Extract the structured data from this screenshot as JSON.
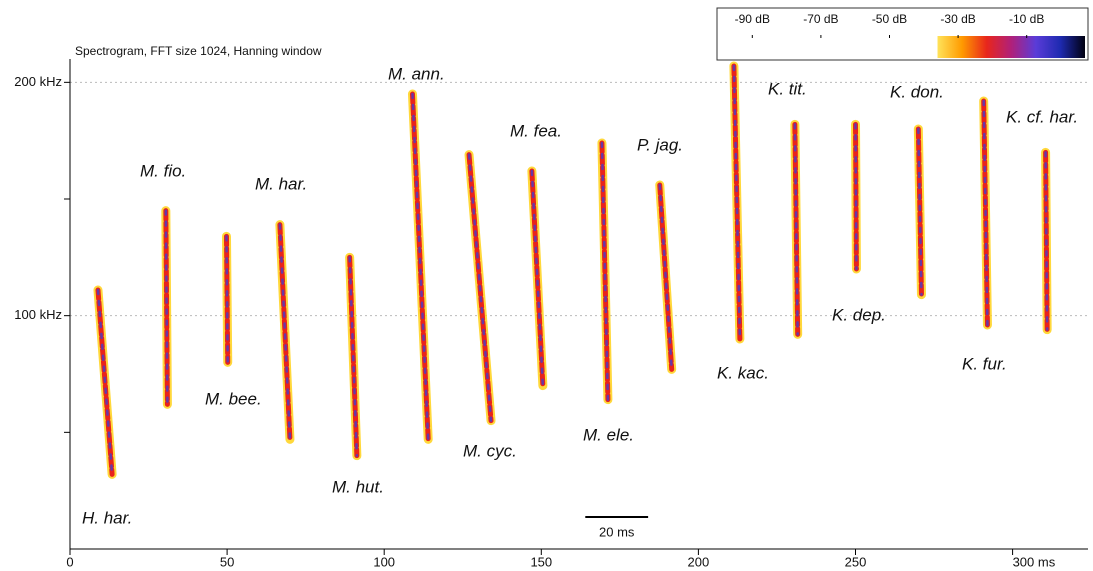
{
  "chart_data": {
    "type": "spectrogram",
    "title": "Spectrogram, FFT size 1024, Hanning window",
    "xlim": [
      0,
      324
    ],
    "ylim": [
      0,
      210
    ],
    "xticks": [
      0,
      50,
      100,
      150,
      200,
      250,
      {
        "value": 300,
        "label": "300 ms"
      }
    ],
    "yticks": [
      {
        "value": 100,
        "label": "100 kHz"
      },
      {
        "value": 200,
        "label": "200 kHz"
      }
    ],
    "yminor": [
      50,
      150
    ],
    "grid": true,
    "scale_bar": {
      "label": "20 ms",
      "start": 164,
      "length": 20
    },
    "colorbar": {
      "lim": [
        -100,
        7
      ],
      "gradient_from": -36,
      "colors": [
        "#ffe35a",
        "#ff9a00",
        "#e8261c",
        "#b0207a",
        "#5a3cd8",
        "#1e2ab0",
        "#000010"
      ],
      "ticks": [
        {
          "value": -90,
          "label": "-90 dB"
        },
        {
          "value": -70,
          "label": "-70 dB"
        },
        {
          "value": -50,
          "label": "-50 dB"
        },
        {
          "value": -30,
          "label": "-30 dB"
        },
        {
          "value": -10,
          "label": "-10 dB"
        }
      ]
    },
    "calls": [
      {
        "name": "H. har.",
        "t": [
          8.9,
          13.4
        ],
        "f": [
          111,
          32
        ]
      },
      {
        "name": "M. fio.",
        "t": [
          30.5,
          31
        ],
        "f": [
          145,
          62
        ]
      },
      {
        "name": "M. bee.",
        "t": [
          49.8,
          50.2
        ],
        "f": [
          134,
          80
        ]
      },
      {
        "name": "M. har.",
        "t": [
          66.8,
          70
        ],
        "f": [
          139,
          47
        ]
      },
      {
        "name": "M. hut.",
        "t": [
          89,
          91.3
        ],
        "f": [
          125,
          40
        ]
      },
      {
        "name": "M. ann.",
        "t": [
          109,
          114
        ],
        "f": [
          195,
          47
        ]
      },
      {
        "name": "M. cyc.",
        "t": [
          127,
          134
        ],
        "f": [
          169,
          55
        ]
      },
      {
        "name": "M. fea.",
        "t": [
          147,
          150.5
        ],
        "f": [
          162,
          70
        ]
      },
      {
        "name": "M. ele.",
        "t": [
          169.3,
          171.2
        ],
        "f": [
          174,
          64
        ]
      },
      {
        "name": "P. jag.",
        "t": [
          187.7,
          191.5
        ],
        "f": [
          156,
          77
        ]
      },
      {
        "name": "K. kac.",
        "t": [
          211.3,
          213.2
        ],
        "f": [
          207,
          90
        ]
      },
      {
        "name": "K. tit.",
        "t": [
          230.7,
          231.6
        ],
        "f": [
          182,
          92
        ]
      },
      {
        "name": "K. dep.",
        "t": [
          250,
          250.3
        ],
        "f": [
          182,
          120
        ]
      },
      {
        "name": "K. don.",
        "t": [
          270,
          271
        ],
        "f": [
          180,
          109
        ]
      },
      {
        "name": "K. fur.",
        "t": [
          290.8,
          292
        ],
        "f": [
          192,
          96
        ]
      },
      {
        "name": "K. cf. har.",
        "t": [
          310.5,
          311
        ],
        "f": [
          170,
          94
        ]
      }
    ]
  }
}
